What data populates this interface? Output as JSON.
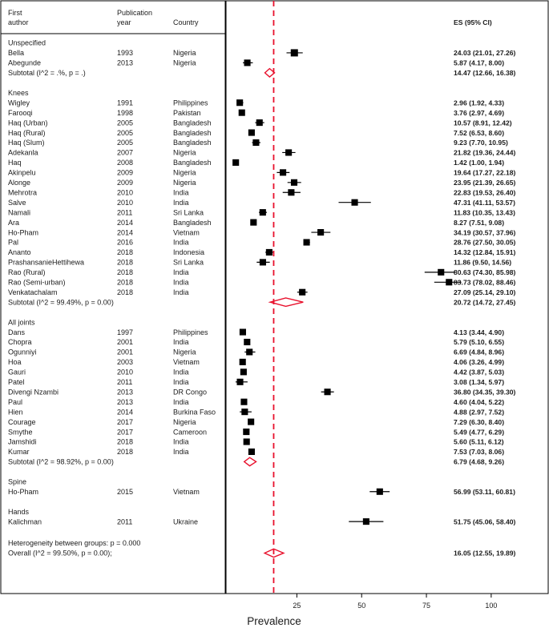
{
  "header": {
    "author_line1": "First",
    "author_line2": "author",
    "year_line1": "Publication",
    "year_line2": "year",
    "country": "Country",
    "es": "ES (95% CI)"
  },
  "colors": {
    "square": "#000000",
    "ci_line": "#000000",
    "diamond": "#e8102c",
    "overall_line": "#e8102c",
    "border": "#000000"
  },
  "chart_data": {
    "type": "forest",
    "xlabel": "Prevalence",
    "xlim": [
      -2.5,
      122
    ],
    "xticks": [
      25,
      50,
      75,
      100
    ],
    "overall_line_value": 16.05,
    "groups": [
      {
        "label": "Unspecified",
        "studies": [
          {
            "author": "Bella",
            "year": "1993",
            "country": "Nigeria",
            "es": 24.03,
            "lo": 21.01,
            "hi": 27.26,
            "es_text": "24.03 (21.01, 27.26)",
            "weight": 1.0
          },
          {
            "author": "Abegunde",
            "year": "2013",
            "country": "Nigeria",
            "es": 5.87,
            "lo": 4.17,
            "hi": 8.0,
            "es_text": "5.87 (4.17, 8.00)",
            "weight": 0.9
          }
        ],
        "subtotal": {
          "label": "Subtotal  (I^2 = .%, p = .)",
          "es": 14.47,
          "lo": 12.66,
          "hi": 16.38,
          "es_text": "14.47 (12.66, 16.38)"
        }
      },
      {
        "label": "Knees",
        "studies": [
          {
            "author": "Wigley",
            "year": "1991",
            "country": "Philippines",
            "es": 2.96,
            "lo": 1.92,
            "hi": 4.33,
            "es_text": "2.96 (1.92, 4.33)",
            "weight": 0.9
          },
          {
            "author": "Farooqi",
            "year": "1998",
            "country": "Pakistan",
            "es": 3.76,
            "lo": 2.97,
            "hi": 4.69,
            "es_text": "3.76 (2.97, 4.69)",
            "weight": 0.9
          },
          {
            "author": "Haq  (Urban)",
            "year": "2005",
            "country": "Bangladesh",
            "es": 10.57,
            "lo": 8.91,
            "hi": 12.42,
            "es_text": "10.57 (8.91, 12.42)",
            "weight": 0.9
          },
          {
            "author": "Haq (Rural)",
            "year": "2005",
            "country": "Bangladesh",
            "es": 7.52,
            "lo": 6.53,
            "hi": 8.6,
            "es_text": "7.52 (6.53, 8.60)",
            "weight": 0.9
          },
          {
            "author": "Haq (Slum)",
            "year": "2005",
            "country": "Bangladesh",
            "es": 9.23,
            "lo": 7.7,
            "hi": 10.95,
            "es_text": "9.23 (7.70, 10.95)",
            "weight": 0.9
          },
          {
            "author": "Adekanla",
            "year": "2007",
            "country": "Nigeria",
            "es": 21.82,
            "lo": 19.36,
            "hi": 24.44,
            "es_text": "21.82 (19.36, 24.44)",
            "weight": 0.9
          },
          {
            "author": "Haq",
            "year": "2008",
            "country": "Bangladesh",
            "es": 1.42,
            "lo": 1.0,
            "hi": 1.94,
            "es_text": "1.42 (1.00, 1.94)",
            "weight": 0.9
          },
          {
            "author": "Akinpelu",
            "year": "2009",
            "country": "Nigeria",
            "es": 19.64,
            "lo": 17.27,
            "hi": 22.18,
            "es_text": "19.64 (17.27, 22.18)",
            "weight": 0.9
          },
          {
            "author": "Alonge",
            "year": "2009",
            "country": "Nigeria",
            "es": 23.95,
            "lo": 21.39,
            "hi": 26.65,
            "es_text": "23.95 (21.39, 26.65)",
            "weight": 0.9
          },
          {
            "author": "Mehrotra",
            "year": "2010",
            "country": "India",
            "es": 22.83,
            "lo": 19.53,
            "hi": 26.4,
            "es_text": "22.83 (19.53, 26.40)",
            "weight": 0.9
          },
          {
            "author": "Salve",
            "year": "2010",
            "country": "India",
            "es": 47.31,
            "lo": 41.11,
            "hi": 53.57,
            "es_text": "47.31 (41.11, 53.57)",
            "weight": 0.9
          },
          {
            "author": "Namali",
            "year": "2011",
            "country": "Sri Lanka",
            "es": 11.83,
            "lo": 10.35,
            "hi": 13.43,
            "es_text": "11.83 (10.35, 13.43)",
            "weight": 0.9
          },
          {
            "author": "Ara",
            "year": "2014",
            "country": "Bangladesh",
            "es": 8.27,
            "lo": 7.51,
            "hi": 9.08,
            "es_text": "8.27 (7.51, 9.08)",
            "weight": 0.9
          },
          {
            "author": "Ho-Pham",
            "year": "2014",
            "country": "Vietnam",
            "es": 34.19,
            "lo": 30.57,
            "hi": 37.96,
            "es_text": "34.19 (30.57, 37.96)",
            "weight": 0.9
          },
          {
            "author": "Pal",
            "year": "2016",
            "country": "India",
            "es": 28.76,
            "lo": 27.5,
            "hi": 30.05,
            "es_text": "28.76 (27.50, 30.05)",
            "weight": 0.9
          },
          {
            "author": "Ananto",
            "year": "2018",
            "country": "Indonesia",
            "es": 14.32,
            "lo": 12.84,
            "hi": 15.91,
            "es_text": "14.32 (12.84, 15.91)",
            "weight": 0.9
          },
          {
            "author": "PrashansanieHettihewa",
            "year": "2018",
            "country": "Sri Lanka",
            "es": 11.86,
            "lo": 9.5,
            "hi": 14.56,
            "es_text": "11.86 (9.50, 14.56)",
            "weight": 0.9
          },
          {
            "author": "Rao (Rural)",
            "year": "2018",
            "country": "India",
            "es": 80.63,
            "lo": 74.3,
            "hi": 85.98,
            "es_text": "80.63 (74.30, 85.98)",
            "weight": 0.9
          },
          {
            "author": "Rao (Semi-urban)",
            "year": "2018",
            "country": "India",
            "es": 83.73,
            "lo": 78.02,
            "hi": 88.46,
            "es_text": "83.73 (78.02, 88.46)",
            "weight": 0.9
          },
          {
            "author": "Venkatachalam",
            "year": "2018",
            "country": "India",
            "es": 27.09,
            "lo": 25.14,
            "hi": 29.1,
            "es_text": "27.09 (25.14, 29.10)",
            "weight": 0.9
          }
        ],
        "subtotal": {
          "label": "Subtotal  (I^2 = 99.49%, p = 0.00)",
          "es": 20.72,
          "lo": 14.72,
          "hi": 27.45,
          "es_text": "20.72 (14.72, 27.45)"
        }
      },
      {
        "label": "All joints",
        "studies": [
          {
            "author": "Dans",
            "year": "1997",
            "country": "Philippines",
            "es": 4.13,
            "lo": 3.44,
            "hi": 4.9,
            "es_text": "4.13 (3.44, 4.90)",
            "weight": 0.9
          },
          {
            "author": "Chopra",
            "year": "2001",
            "country": "India",
            "es": 5.79,
            "lo": 5.1,
            "hi": 6.55,
            "es_text": "5.79 (5.10, 6.55)",
            "weight": 0.9
          },
          {
            "author": "Ogunniyi",
            "year": "2001",
            "country": "Nigeria",
            "es": 6.69,
            "lo": 4.84,
            "hi": 8.96,
            "es_text": "6.69 (4.84, 8.96)",
            "weight": 0.9
          },
          {
            "author": "Hoa",
            "year": "2003",
            "country": "Vietnam",
            "es": 4.06,
            "lo": 3.26,
            "hi": 4.99,
            "es_text": "4.06 (3.26, 4.99)",
            "weight": 0.9
          },
          {
            "author": "Gauri",
            "year": "2010",
            "country": "India",
            "es": 4.42,
            "lo": 3.87,
            "hi": 5.03,
            "es_text": "4.42 (3.87, 5.03)",
            "weight": 0.9
          },
          {
            "author": "Patel",
            "year": "2011",
            "country": "India",
            "es": 3.08,
            "lo": 1.34,
            "hi": 5.97,
            "es_text": "3.08 (1.34, 5.97)",
            "weight": 0.9
          },
          {
            "author": "Divengi Nzambi",
            "year": "2013",
            "country": "DR Congo",
            "es": 36.8,
            "lo": 34.35,
            "hi": 39.3,
            "es_text": "36.80 (34.35, 39.30)",
            "weight": 0.9
          },
          {
            "author": "Paul",
            "year": "2013",
            "country": "India",
            "es": 4.6,
            "lo": 4.04,
            "hi": 5.22,
            "es_text": "4.60 (4.04, 5.22)",
            "weight": 0.9
          },
          {
            "author": "Hien",
            "year": "2014",
            "country": "Burkina Faso",
            "es": 4.88,
            "lo": 2.97,
            "hi": 7.52,
            "es_text": "4.88 (2.97, 7.52)",
            "weight": 0.9
          },
          {
            "author": "Courage",
            "year": "2017",
            "country": "Nigeria",
            "es": 7.29,
            "lo": 6.3,
            "hi": 8.4,
            "es_text": "7.29 (6.30, 8.40)",
            "weight": 0.9
          },
          {
            "author": "Smythe",
            "year": "2017",
            "country": "Cameroon",
            "es": 5.49,
            "lo": 4.77,
            "hi": 6.29,
            "es_text": "5.49 (4.77, 6.29)",
            "weight": 0.9
          },
          {
            "author": "Jamshidi",
            "year": "2018",
            "country": "India",
            "es": 5.6,
            "lo": 5.11,
            "hi": 6.12,
            "es_text": "5.60 (5.11, 6.12)",
            "weight": 0.9
          },
          {
            "author": "Kumar",
            "year": "2018",
            "country": "India",
            "es": 7.53,
            "lo": 7.03,
            "hi": 8.06,
            "es_text": "7.53 (7.03, 8.06)",
            "weight": 0.9
          }
        ],
        "subtotal": {
          "label": "Subtotal  (I^2 = 98.92%, p = 0.00)",
          "es": 6.79,
          "lo": 4.68,
          "hi": 9.26,
          "es_text": "6.79 (4.68, 9.26)"
        }
      },
      {
        "label": "Spine",
        "studies": [
          {
            "author": "Ho-Pham",
            "year": "2015",
            "country": "Vietnam",
            "es": 56.99,
            "lo": 53.11,
            "hi": 60.81,
            "es_text": "56.99 (53.11, 60.81)",
            "weight": 0.9
          }
        ],
        "subtotal": null
      },
      {
        "label": "Hands",
        "studies": [
          {
            "author": "Kalichman",
            "year": "2011",
            "country": "Ukraine",
            "es": 51.75,
            "lo": 45.06,
            "hi": 58.4,
            "es_text": "51.75 (45.06, 58.40)",
            "weight": 0.9
          }
        ],
        "subtotal": null
      }
    ],
    "heterogeneity": "Heterogeneity between groups: p = 0.000",
    "overall": {
      "label": "Overall  (I^2 = 99.50%, p = 0.00);",
      "es": 16.05,
      "lo": 12.55,
      "hi": 19.89,
      "es_text": "16.05 (12.55, 19.89)"
    }
  }
}
